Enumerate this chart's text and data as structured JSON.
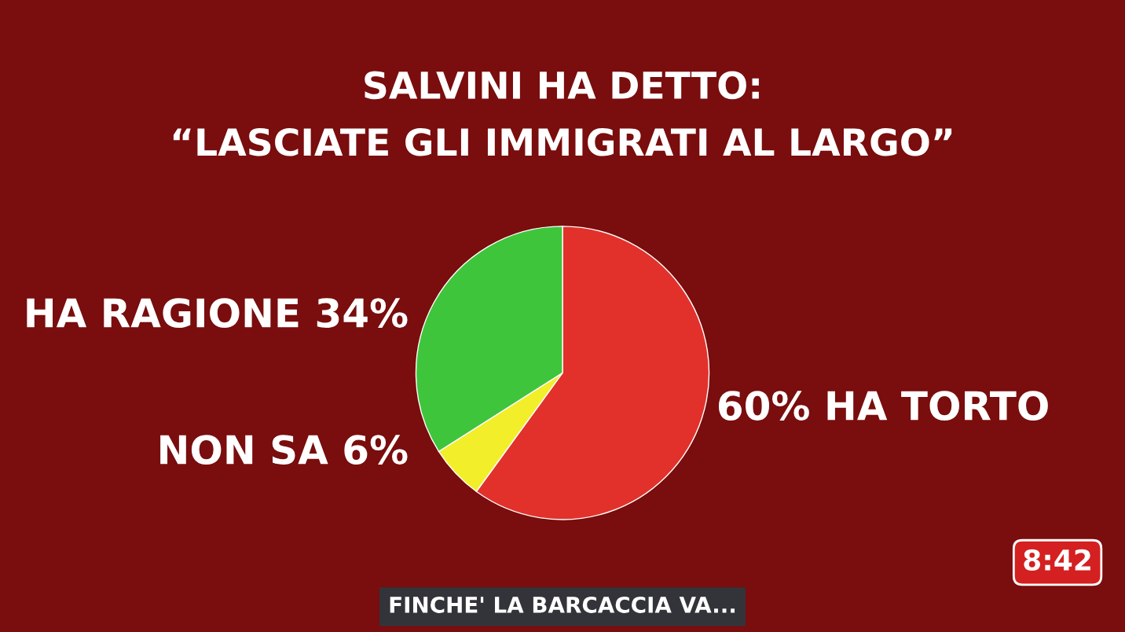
{
  "chart_data": {
    "type": "pie",
    "title": "SALVINI HA DETTO:",
    "subtitle": "“LASCIATE GLI IMMIGRATI AL LARGO”",
    "categories": [
      "HA TORTO",
      "NON SA",
      "HA RAGIONE"
    ],
    "values": [
      60,
      6,
      34
    ],
    "value_labels": [
      "60%",
      "6%",
      "34%"
    ],
    "colors": [
      "#e2312b",
      "#f2ee2a",
      "#3fc53b"
    ],
    "annotations": [
      "FINCHE' LA BARCACCIA VA...",
      "8:42"
    ]
  }
}
